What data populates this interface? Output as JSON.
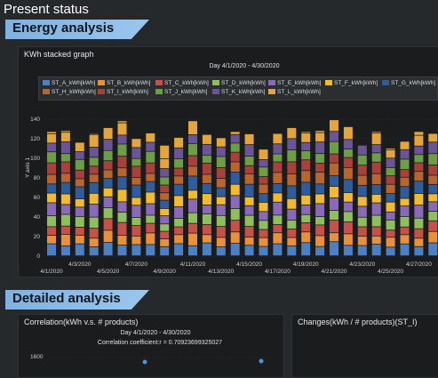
{
  "page": {
    "title": "Present status"
  },
  "sections": {
    "energy": "Energy analysis",
    "detailed": "Detailed analysis"
  },
  "kwh_panel": {
    "title": "KWh stacked graph",
    "date_range": "Day 4/1/2020 - 4/30/2020",
    "y_axis_label": "Y axis 1"
  },
  "corr_panel": {
    "title": "Correlation(kWh v.s. # products)",
    "date_range": "Day 4/1/2020 - 4/30/2020",
    "coefficient": "Correlation coefficient:r = 0.70923699325027",
    "y_tick": "1600"
  },
  "changes_panel": {
    "title": "Changes(kWh / # products)(ST_I)"
  },
  "colors": {
    "ST_A": "#4d7fc4",
    "ST_B": "#e8903a",
    "ST_C": "#c8504a",
    "ST_D": "#8fbf5a",
    "ST_E": "#8a6ab8",
    "ST_F": "#f2bb2e",
    "ST_G": "#2f5c9c",
    "ST_H": "#b8652e",
    "ST_I": "#a8403c",
    "ST_J": "#6e9e44",
    "ST_K": "#6b5596",
    "ST_L": "#e4a63a"
  },
  "chart_data": {
    "type": "bar",
    "stacked": true,
    "title": "Day 4/1/2020 - 4/30/2020",
    "ylabel": "Y axis 1",
    "ylim": [
      0,
      150
    ],
    "y_ticks": [
      "0",
      "20",
      "40",
      "60",
      "80",
      "100",
      "120",
      "140"
    ],
    "grid": true,
    "legend_position": "top",
    "x_tick_labels": [
      "4/1/2020",
      "4/3/2020",
      "4/5/2020",
      "4/7/2020",
      "4/9/2020",
      "4/11/2020",
      "4/13/2020",
      "4/15/2020",
      "4/17/2020",
      "4/19/2020",
      "4/21/2020",
      "4/23/2020",
      "4/25/2020",
      "4/27/2020"
    ],
    "bar_totals": [
      127,
      128,
      116,
      125,
      131,
      138,
      120,
      126,
      113,
      121,
      138,
      124,
      121,
      127,
      125,
      109,
      125,
      131,
      127,
      128,
      139,
      132,
      113,
      127,
      110,
      117,
      127,
      125,
      124,
      110,
      125,
      125,
      130,
      124,
      123,
      128,
      118,
      126,
      126
    ],
    "series": [
      {
        "name": "ST_A_kWh[kWh]",
        "share": 0.09
      },
      {
        "name": "ST_B_kWh[kWh]",
        "share": 0.08
      },
      {
        "name": "ST_C_kWh[kWh]",
        "share": 0.08
      },
      {
        "name": "ST_D_kWh[kWh]",
        "share": 0.08
      },
      {
        "name": "ST_E_kWh[kWh]",
        "share": 0.09
      },
      {
        "name": "ST_F_kWh[kWh]",
        "share": 0.08
      },
      {
        "name": "ST_G_kWh[kWh]",
        "share": 0.09
      },
      {
        "name": "ST_H_kWh[kWh]",
        "share": 0.08
      },
      {
        "name": "ST_I_kWh[kWh]",
        "share": 0.08
      },
      {
        "name": "ST_J_kWh[kWh]",
        "share": 0.08
      },
      {
        "name": "ST_K_kWh[kWh]",
        "share": 0.08
      },
      {
        "name": "ST_L_kWh[kWh]",
        "share": 0.09
      }
    ]
  }
}
